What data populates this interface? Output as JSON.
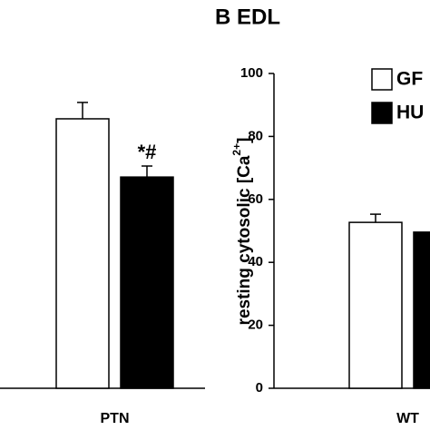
{
  "chart_data": [
    {
      "type": "bar",
      "categories": [
        "PTN"
      ],
      "series": [
        {
          "color": "#ffffff",
          "values": [
            85.6
          ],
          "errors": [
            5.2
          ]
        },
        {
          "color": "#000000",
          "values": [
            67.1
          ],
          "errors": [
            3.5
          ]
        }
      ],
      "annotations": [
        "*#"
      ],
      "ylim": [
        0,
        100
      ]
    },
    {
      "type": "bar",
      "title": "B  EDL",
      "ylabel": "resting cytosolic [Ca",
      "ylabel_sup": "2+",
      "ylabel_end": "]",
      "categories": [
        "WT"
      ],
      "series": [
        {
          "name": "GF",
          "color": "#ffffff",
          "values": [
            52.7
          ],
          "errors": [
            2.6
          ]
        },
        {
          "name": "HU",
          "color": "#000000",
          "values": [
            49.6
          ],
          "errors": [
            null
          ]
        }
      ],
      "ylim": [
        0,
        100
      ],
      "yticks": [
        0,
        20,
        40,
        60,
        80,
        100
      ]
    }
  ]
}
